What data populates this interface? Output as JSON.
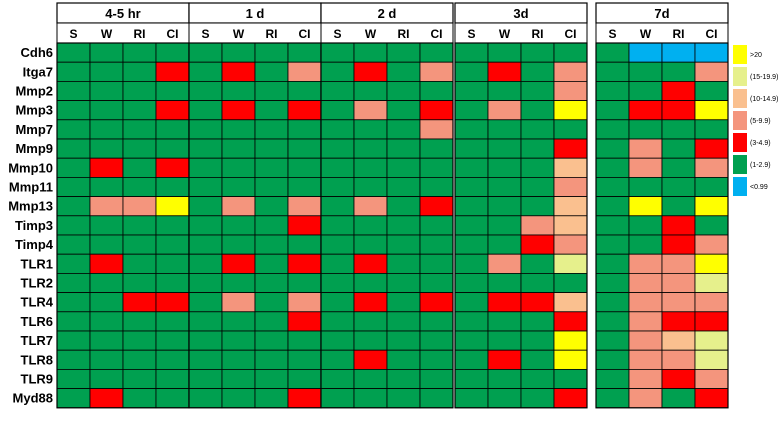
{
  "chart_data": {
    "type": "heatmap",
    "rows": [
      "Cdh6",
      "Itga7",
      "Mmp2",
      "Mmp3",
      "Mmp7",
      "Mmp9",
      "Mmp10",
      "Mmp11",
      "Mmp13",
      "Timp3",
      "Timp4",
      "TLR1",
      "TLR2",
      "TLR4",
      "TLR6",
      "TLR7",
      "TLR8",
      "TLR9",
      "Myd88"
    ],
    "columns": [
      "S",
      "W",
      "RI",
      "CI"
    ],
    "panels": [
      {
        "title": "4-5 hr",
        "values": [
          [
            "1-2.9",
            "1-2.9",
            "1-2.9",
            "1-2.9"
          ],
          [
            "1-2.9",
            "1-2.9",
            "1-2.9",
            "3-4.9"
          ],
          [
            "1-2.9",
            "1-2.9",
            "1-2.9",
            "1-2.9"
          ],
          [
            "1-2.9",
            "1-2.9",
            "1-2.9",
            "3-4.9"
          ],
          [
            "1-2.9",
            "1-2.9",
            "1-2.9",
            "1-2.9"
          ],
          [
            "1-2.9",
            "1-2.9",
            "1-2.9",
            "1-2.9"
          ],
          [
            "1-2.9",
            "3-4.9",
            "1-2.9",
            "3-4.9"
          ],
          [
            "1-2.9",
            "1-2.9",
            "1-2.9",
            "1-2.9"
          ],
          [
            "1-2.9",
            "5-9.9",
            "5-9.9",
            ">20"
          ],
          [
            "1-2.9",
            "1-2.9",
            "1-2.9",
            "1-2.9"
          ],
          [
            "1-2.9",
            "1-2.9",
            "1-2.9",
            "1-2.9"
          ],
          [
            "1-2.9",
            "3-4.9",
            "1-2.9",
            "1-2.9"
          ],
          [
            "1-2.9",
            "1-2.9",
            "1-2.9",
            "1-2.9"
          ],
          [
            "1-2.9",
            "1-2.9",
            "3-4.9",
            "3-4.9"
          ],
          [
            "1-2.9",
            "1-2.9",
            "1-2.9",
            "1-2.9"
          ],
          [
            "1-2.9",
            "1-2.9",
            "1-2.9",
            "1-2.9"
          ],
          [
            "1-2.9",
            "1-2.9",
            "1-2.9",
            "1-2.9"
          ],
          [
            "1-2.9",
            "1-2.9",
            "1-2.9",
            "1-2.9"
          ],
          [
            "1-2.9",
            "3-4.9",
            "1-2.9",
            "1-2.9"
          ]
        ]
      },
      {
        "title": "1 d",
        "values": [
          [
            "1-2.9",
            "1-2.9",
            "1-2.9",
            "1-2.9"
          ],
          [
            "1-2.9",
            "3-4.9",
            "1-2.9",
            "5-9.9"
          ],
          [
            "1-2.9",
            "1-2.9",
            "1-2.9",
            "1-2.9"
          ],
          [
            "1-2.9",
            "3-4.9",
            "1-2.9",
            "3-4.9"
          ],
          [
            "1-2.9",
            "1-2.9",
            "1-2.9",
            "1-2.9"
          ],
          [
            "1-2.9",
            "1-2.9",
            "1-2.9",
            "1-2.9"
          ],
          [
            "1-2.9",
            "1-2.9",
            "1-2.9",
            "1-2.9"
          ],
          [
            "1-2.9",
            "1-2.9",
            "1-2.9",
            "1-2.9"
          ],
          [
            "1-2.9",
            "5-9.9",
            "1-2.9",
            "5-9.9"
          ],
          [
            "1-2.9",
            "1-2.9",
            "1-2.9",
            "3-4.9"
          ],
          [
            "1-2.9",
            "1-2.9",
            "1-2.9",
            "1-2.9"
          ],
          [
            "1-2.9",
            "3-4.9",
            "1-2.9",
            "3-4.9"
          ],
          [
            "1-2.9",
            "1-2.9",
            "1-2.9",
            "1-2.9"
          ],
          [
            "1-2.9",
            "5-9.9",
            "1-2.9",
            "5-9.9"
          ],
          [
            "1-2.9",
            "1-2.9",
            "1-2.9",
            "3-4.9"
          ],
          [
            "1-2.9",
            "1-2.9",
            "1-2.9",
            "1-2.9"
          ],
          [
            "1-2.9",
            "1-2.9",
            "1-2.9",
            "1-2.9"
          ],
          [
            "1-2.9",
            "1-2.9",
            "1-2.9",
            "1-2.9"
          ],
          [
            "1-2.9",
            "1-2.9",
            "1-2.9",
            "3-4.9"
          ]
        ]
      },
      {
        "title": "2 d",
        "values": [
          [
            "1-2.9",
            "1-2.9",
            "1-2.9",
            "1-2.9"
          ],
          [
            "1-2.9",
            "3-4.9",
            "1-2.9",
            "5-9.9"
          ],
          [
            "1-2.9",
            "1-2.9",
            "1-2.9",
            "1-2.9"
          ],
          [
            "1-2.9",
            "5-9.9",
            "1-2.9",
            "3-4.9"
          ],
          [
            "1-2.9",
            "1-2.9",
            "1-2.9",
            "5-9.9"
          ],
          [
            "1-2.9",
            "1-2.9",
            "1-2.9",
            "1-2.9"
          ],
          [
            "1-2.9",
            "1-2.9",
            "1-2.9",
            "1-2.9"
          ],
          [
            "1-2.9",
            "1-2.9",
            "1-2.9",
            "1-2.9"
          ],
          [
            "1-2.9",
            "5-9.9",
            "1-2.9",
            "3-4.9"
          ],
          [
            "1-2.9",
            "1-2.9",
            "1-2.9",
            "1-2.9"
          ],
          [
            "1-2.9",
            "1-2.9",
            "1-2.9",
            "1-2.9"
          ],
          [
            "1-2.9",
            "3-4.9",
            "1-2.9",
            "1-2.9"
          ],
          [
            "1-2.9",
            "1-2.9",
            "1-2.9",
            "1-2.9"
          ],
          [
            "1-2.9",
            "3-4.9",
            "1-2.9",
            "3-4.9"
          ],
          [
            "1-2.9",
            "1-2.9",
            "1-2.9",
            "1-2.9"
          ],
          [
            "1-2.9",
            "1-2.9",
            "1-2.9",
            "1-2.9"
          ],
          [
            "1-2.9",
            "3-4.9",
            "1-2.9",
            "1-2.9"
          ],
          [
            "1-2.9",
            "1-2.9",
            "1-2.9",
            "1-2.9"
          ],
          [
            "1-2.9",
            "1-2.9",
            "1-2.9",
            "1-2.9"
          ]
        ]
      },
      {
        "title": "3d",
        "values": [
          [
            "1-2.9",
            "1-2.9",
            "1-2.9",
            "1-2.9"
          ],
          [
            "1-2.9",
            "3-4.9",
            "1-2.9",
            "5-9.9"
          ],
          [
            "1-2.9",
            "1-2.9",
            "1-2.9",
            "5-9.9"
          ],
          [
            "1-2.9",
            "5-9.9",
            "1-2.9",
            ">20"
          ],
          [
            "1-2.9",
            "1-2.9",
            "1-2.9",
            "1-2.9"
          ],
          [
            "1-2.9",
            "1-2.9",
            "1-2.9",
            "3-4.9"
          ],
          [
            "1-2.9",
            "1-2.9",
            "1-2.9",
            "10-14.9"
          ],
          [
            "1-2.9",
            "1-2.9",
            "1-2.9",
            "5-9.9"
          ],
          [
            "1-2.9",
            "1-2.9",
            "1-2.9",
            "10-14.9"
          ],
          [
            "1-2.9",
            "1-2.9",
            "5-9.9",
            "10-14.9"
          ],
          [
            "1-2.9",
            "1-2.9",
            "3-4.9",
            "5-9.9"
          ],
          [
            "1-2.9",
            "5-9.9",
            "1-2.9",
            "15-19.9"
          ],
          [
            "1-2.9",
            "1-2.9",
            "1-2.9",
            "1-2.9"
          ],
          [
            "1-2.9",
            "3-4.9",
            "3-4.9",
            "10-14.9"
          ],
          [
            "1-2.9",
            "1-2.9",
            "1-2.9",
            "3-4.9"
          ],
          [
            "1-2.9",
            "1-2.9",
            "1-2.9",
            ">20"
          ],
          [
            "1-2.9",
            "3-4.9",
            "1-2.9",
            ">20"
          ],
          [
            "1-2.9",
            "1-2.9",
            "1-2.9",
            "1-2.9"
          ],
          [
            "1-2.9",
            "1-2.9",
            "1-2.9",
            "3-4.9"
          ]
        ]
      },
      {
        "title": "7d",
        "values": [
          [
            "1-2.9",
            "<0.99",
            "<0.99",
            "<0.99"
          ],
          [
            "1-2.9",
            "1-2.9",
            "1-2.9",
            "5-9.9"
          ],
          [
            "1-2.9",
            "1-2.9",
            "3-4.9",
            "1-2.9"
          ],
          [
            "1-2.9",
            "3-4.9",
            "3-4.9",
            ">20"
          ],
          [
            "1-2.9",
            "1-2.9",
            "1-2.9",
            "1-2.9"
          ],
          [
            "1-2.9",
            "5-9.9",
            "1-2.9",
            "3-4.9"
          ],
          [
            "1-2.9",
            "5-9.9",
            "1-2.9",
            "5-9.9"
          ],
          [
            "1-2.9",
            "1-2.9",
            "1-2.9",
            "1-2.9"
          ],
          [
            "1-2.9",
            ">20",
            "1-2.9",
            ">20"
          ],
          [
            "1-2.9",
            "1-2.9",
            "3-4.9",
            "1-2.9"
          ],
          [
            "1-2.9",
            "1-2.9",
            "3-4.9",
            "5-9.9"
          ],
          [
            "1-2.9",
            "5-9.9",
            "5-9.9",
            ">20"
          ],
          [
            "1-2.9",
            "5-9.9",
            "5-9.9",
            "15-19.9"
          ],
          [
            "1-2.9",
            "5-9.9",
            "5-9.9",
            "5-9.9"
          ],
          [
            "1-2.9",
            "5-9.9",
            "3-4.9",
            "3-4.9"
          ],
          [
            "1-2.9",
            "5-9.9",
            "10-14.9",
            "15-19.9"
          ],
          [
            "1-2.9",
            "5-9.9",
            "5-9.9",
            "15-19.9"
          ],
          [
            "1-2.9",
            "5-9.9",
            "3-4.9",
            "5-9.9"
          ],
          [
            "1-2.9",
            "5-9.9",
            "1-2.9",
            "3-4.9"
          ]
        ]
      }
    ],
    "legend": [
      {
        "label": ">20",
        "key": ">20",
        "color": "#ffff00"
      },
      {
        "label": "(15-19.9)",
        "key": "15-19.9",
        "color": "#e6f08c"
      },
      {
        "label": "(10-14.9)",
        "key": "10-14.9",
        "color": "#fac08f"
      },
      {
        "label": "(5-9.9)",
        "key": "5-9.9",
        "color": "#f4957d"
      },
      {
        "label": "(3-4.9)",
        "key": "3-4.9",
        "color": "#ff0000"
      },
      {
        "label": "(1-2.9)",
        "key": "1-2.9",
        "color": "#00a050"
      },
      {
        "label": "<0.99",
        "key": "<0.99",
        "color": "#00b0f0"
      }
    ],
    "legend_placement": "right"
  }
}
